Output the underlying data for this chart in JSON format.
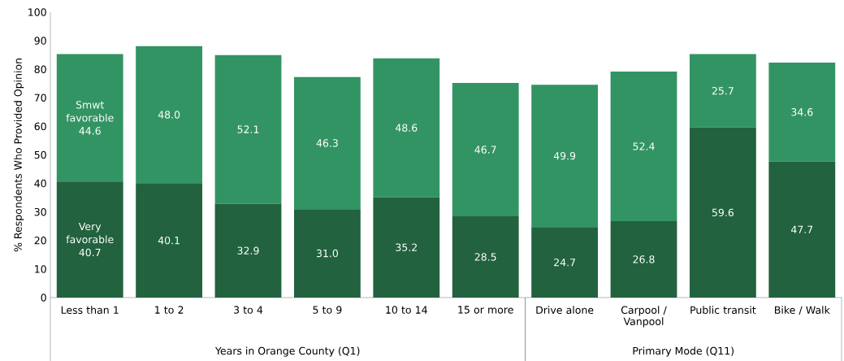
{
  "chart_data": {
    "type": "bar",
    "stacked": true,
    "ylabel": "% Respondents Who Provided Opinion",
    "categories": [
      "Less than 1",
      "1 to 2",
      "3 to 4",
      "5 to 9",
      "10 to 14",
      "15 or more",
      "Drive alone",
      "Carpool / Vanpool",
      "Public transit",
      "Bike / Walk"
    ],
    "series": [
      {
        "name": "Very favorable",
        "color": "#22623f",
        "values": [
          40.7,
          40.1,
          32.9,
          31.0,
          35.2,
          28.5,
          24.7,
          26.8,
          59.6,
          47.7
        ],
        "value_labels": [
          "40.7",
          "40.1",
          "32.9",
          "31.0",
          "35.2",
          "28.5",
          "24.7",
          "26.8",
          "59.6",
          "47.7"
        ]
      },
      {
        "name": "Smwt favorable",
        "color": "#339463",
        "values": [
          44.6,
          48.0,
          52.1,
          46.3,
          48.6,
          46.7,
          49.9,
          52.4,
          25.7,
          34.6
        ],
        "value_labels": [
          "44.6",
          "48.0",
          "52.1",
          "46.3",
          "48.6",
          "46.7",
          "49.9",
          "52.4",
          "25.7",
          "34.6"
        ]
      }
    ],
    "ylim": [
      0,
      100
    ],
    "yticks": [
      0,
      10,
      20,
      30,
      40,
      50,
      60,
      70,
      80,
      90,
      100
    ],
    "grid": false,
    "annotations": [
      "Years in Orange County (Q1)",
      "Primary Mode (Q11)"
    ]
  }
}
